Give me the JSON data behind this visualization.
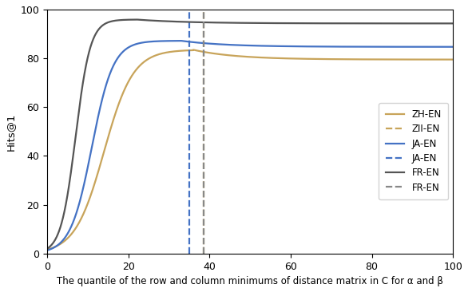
{
  "xlabel": "The quantile of the row and column minimums of distance matrix in C for α and β",
  "ylabel": "Hits@1",
  "xlim": [
    0,
    100
  ],
  "ylim": [
    0,
    100
  ],
  "xticks": [
    0,
    20,
    40,
    60,
    80,
    100
  ],
  "yticks": [
    0,
    20,
    40,
    60,
    80,
    100
  ],
  "figsize": [
    5.86,
    3.66
  ],
  "dpi": 100,
  "curves": [
    {
      "label": "ZH-EN",
      "color": "#c8a45a",
      "ls": "-",
      "lw": 1.6,
      "type": "curve",
      "k": 0.28,
      "x0": 14,
      "peak_y": 83.5,
      "plateau_y": 79.5,
      "peak_x": 36
    },
    {
      "label": "ZII-EN",
      "color": "#c8a45a",
      "ls": "--",
      "lw": 1.6,
      "type": "vline",
      "vline_x": 38.5
    },
    {
      "label": "JA-EN",
      "color": "#4472c4",
      "ls": "-",
      "lw": 1.6,
      "type": "curve",
      "k": 0.38,
      "x0": 11,
      "peak_y": 87.2,
      "plateau_y": 84.7,
      "peak_x": 33
    },
    {
      "label": "JA-EN",
      "color": "#4472c4",
      "ls": "--",
      "lw": 1.6,
      "type": "vline",
      "vline_x": 35.0
    },
    {
      "label": "FR-EN",
      "color": "#555555",
      "ls": "-",
      "lw": 1.6,
      "type": "curve",
      "k": 0.55,
      "x0": 7,
      "peak_y": 95.9,
      "plateau_y": 94.3,
      "peak_x": 22
    },
    {
      "label": "FR-EN",
      "color": "#888888",
      "ls": "--",
      "lw": 1.6,
      "type": "vline",
      "vline_x": 38.5
    }
  ]
}
